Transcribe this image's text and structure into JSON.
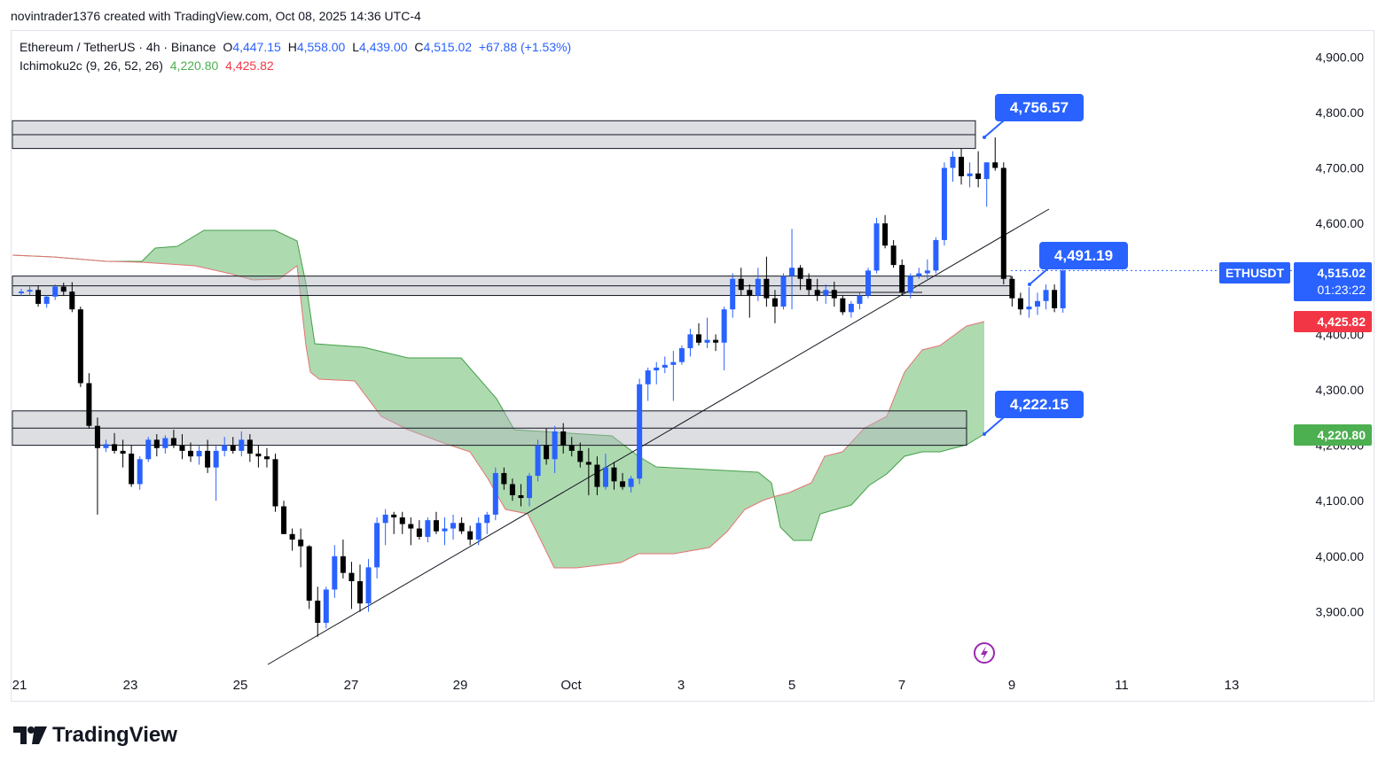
{
  "header": {
    "text": "novintrader1376 created with TradingView.com, Oct 08, 2025 14:36 UTC-4"
  },
  "legend": {
    "symbol": "Ethereum / TetherUS · 4h · Binance",
    "o_label": "O",
    "o": "4,447.15",
    "h_label": "H",
    "h": "4,558.00",
    "l_label": "L",
    "l": "4,439.00",
    "c_label": "C",
    "c": "4,515.02",
    "change": "+67.88 (+1.53%)",
    "indicator": "Ichimoku2c (9, 26, 52, 26)",
    "ind_val1": "4,220.80",
    "ind_val2": "4,425.82"
  },
  "logo": {
    "text": "TradingView"
  },
  "colors": {
    "up": "#2962ff",
    "down": "#000000",
    "cloud": "#a5d6a7",
    "cloud_edge": "#e57373",
    "accent": "#2962ff",
    "red": "#f23645",
    "green": "#4caf50"
  },
  "chart_data": {
    "type": "candlestick",
    "title": "Ethereum / TetherUS · 4h · Binance",
    "y_ticks": [
      "4,900.00",
      "4,800.00",
      "4,700.00",
      "4,600.00",
      "4,500.00",
      "4,400.00",
      "4,300.00",
      "4,200.00",
      "4,100.00",
      "4,000.00",
      "3,900.00"
    ],
    "x_ticks": [
      "21",
      "23",
      "25",
      "27",
      "29",
      "Oct",
      "3",
      "5",
      "7",
      "9",
      "11",
      "13"
    ],
    "ylim": [
      3830,
      4960
    ],
    "price_labels": {
      "symbol": "ETHUSDT",
      "last": "4,515.02",
      "countdown": "01:23:22",
      "kijun": "4,425.82",
      "senkou": "4,220.80"
    },
    "callouts": [
      "4,756.57",
      "4,491.19",
      "4,222.15"
    ],
    "zones": [
      {
        "low": 4735,
        "high": 4785
      },
      {
        "low": 4470,
        "high": 4505
      },
      {
        "low": 4200,
        "high": 4262
      }
    ],
    "candles": [
      [
        4474,
        4482,
        4469,
        4477
      ],
      [
        4477,
        4486,
        4470,
        4480
      ],
      [
        4480,
        4488,
        4450,
        4455
      ],
      [
        4455,
        4470,
        4448,
        4468
      ],
      [
        4468,
        4490,
        4462,
        4486
      ],
      [
        4486,
        4493,
        4470,
        4477
      ],
      [
        4477,
        4494,
        4440,
        4445
      ],
      [
        4445,
        4450,
        4305,
        4312
      ],
      [
        4312,
        4330,
        4230,
        4235
      ],
      [
        4235,
        4250,
        4075,
        4195
      ],
      [
        4195,
        4210,
        4188,
        4202
      ],
      [
        4202,
        4222,
        4185,
        4190
      ],
      [
        4190,
        4210,
        4160,
        4185
      ],
      [
        4185,
        4200,
        4125,
        4130
      ],
      [
        4130,
        4180,
        4120,
        4175
      ],
      [
        4175,
        4215,
        4170,
        4210
      ],
      [
        4210,
        4220,
        4180,
        4195
      ],
      [
        4195,
        4218,
        4185,
        4213
      ],
      [
        4213,
        4228,
        4195,
        4200
      ],
      [
        4200,
        4220,
        4175,
        4190
      ],
      [
        4190,
        4205,
        4170,
        4180
      ],
      [
        4180,
        4200,
        4165,
        4190
      ],
      [
        4190,
        4210,
        4150,
        4160
      ],
      [
        4160,
        4200,
        4100,
        4190
      ],
      [
        4190,
        4215,
        4180,
        4200
      ],
      [
        4200,
        4215,
        4185,
        4190
      ],
      [
        4190,
        4225,
        4180,
        4210
      ],
      [
        4210,
        4220,
        4170,
        4185
      ],
      [
        4185,
        4200,
        4160,
        4180
      ],
      [
        4180,
        4195,
        4160,
        4175
      ],
      [
        4175,
        4185,
        4080,
        4090
      ],
      [
        4090,
        4100,
        4040,
        4040
      ],
      [
        4040,
        4050,
        4010,
        4030
      ],
      [
        4030,
        4050,
        3980,
        4018
      ],
      [
        4018,
        4020,
        3905,
        3920
      ],
      [
        3920,
        3945,
        3855,
        3880
      ],
      [
        3880,
        3945,
        3870,
        3940
      ],
      [
        3940,
        4020,
        3925,
        4000
      ],
      [
        4000,
        4030,
        3960,
        3970
      ],
      [
        3970,
        3990,
        3905,
        3955
      ],
      [
        3955,
        3985,
        3900,
        3915
      ],
      [
        3915,
        3995,
        3900,
        3980
      ],
      [
        3980,
        4070,
        3960,
        4060
      ],
      [
        4060,
        4085,
        4020,
        4075
      ],
      [
        4075,
        4080,
        4040,
        4070
      ],
      [
        4070,
        4080,
        4040,
        4058
      ],
      [
        4058,
        4070,
        4020,
        4050
      ],
      [
        4050,
        4065,
        4030,
        4035
      ],
      [
        4035,
        4070,
        4025,
        4065
      ],
      [
        4065,
        4080,
        4040,
        4045
      ],
      [
        4045,
        4070,
        4020,
        4050
      ],
      [
        4050,
        4075,
        4030,
        4060
      ],
      [
        4060,
        4070,
        4040,
        4045
      ],
      [
        4045,
        4055,
        4020,
        4030
      ],
      [
        4030,
        4070,
        4020,
        4060
      ],
      [
        4060,
        4080,
        4040,
        4075
      ],
      [
        4075,
        4160,
        4065,
        4150
      ],
      [
        4150,
        4160,
        4120,
        4130
      ],
      [
        4130,
        4140,
        4100,
        4110
      ],
      [
        4110,
        4130,
        4090,
        4105
      ],
      [
        4105,
        4150,
        4090,
        4145
      ],
      [
        4145,
        4210,
        4135,
        4200
      ],
      [
        4200,
        4230,
        4165,
        4175
      ],
      [
        4175,
        4235,
        4150,
        4225
      ],
      [
        4225,
        4240,
        4185,
        4200
      ],
      [
        4200,
        4215,
        4180,
        4190
      ],
      [
        4190,
        4205,
        4160,
        4170
      ],
      [
        4170,
        4195,
        4110,
        4165
      ],
      [
        4165,
        4180,
        4110,
        4125
      ],
      [
        4125,
        4185,
        4120,
        4160
      ],
      [
        4160,
        4170,
        4120,
        4135
      ],
      [
        4135,
        4150,
        4120,
        4125
      ],
      [
        4125,
        4145,
        4115,
        4140
      ],
      [
        4140,
        4320,
        4130,
        4310
      ],
      [
        4310,
        4340,
        4280,
        4335
      ],
      [
        4335,
        4350,
        4310,
        4340
      ],
      [
        4340,
        4360,
        4330,
        4345
      ],
      [
        4345,
        4370,
        4280,
        4350
      ],
      [
        4350,
        4380,
        4345,
        4375
      ],
      [
        4375,
        4410,
        4360,
        4400
      ],
      [
        4400,
        4420,
        4380,
        4385
      ],
      [
        4385,
        4430,
        4375,
        4390
      ],
      [
        4390,
        4400,
        4370,
        4385
      ],
      [
        4385,
        4450,
        4335,
        4445
      ],
      [
        4445,
        4510,
        4430,
        4500
      ],
      [
        4500,
        4520,
        4470,
        4480
      ],
      [
        4480,
        4490,
        4430,
        4470
      ],
      [
        4470,
        4520,
        4460,
        4500
      ],
      [
        4500,
        4540,
        4450,
        4465
      ],
      [
        4465,
        4480,
        4420,
        4450
      ],
      [
        4450,
        4510,
        4445,
        4505
      ],
      [
        4505,
        4590,
        4445,
        4520
      ],
      [
        4520,
        4525,
        4480,
        4500
      ],
      [
        4500,
        4510,
        4470,
        4480
      ],
      [
        4480,
        4500,
        4460,
        4470
      ],
      [
        4470,
        4490,
        4455,
        4480
      ],
      [
        4480,
        4495,
        4450,
        4465
      ],
      [
        4465,
        4470,
        4435,
        4440
      ],
      [
        4440,
        4460,
        4430,
        4455
      ],
      [
        4455,
        4475,
        4445,
        4470
      ],
      [
        4470,
        4520,
        4465,
        4515
      ],
      [
        4515,
        4610,
        4510,
        4600
      ],
      [
        4600,
        4615,
        4555,
        4560
      ],
      [
        4560,
        4570,
        4520,
        4525
      ],
      [
        4525,
        4535,
        4470,
        4475
      ],
      [
        4475,
        4510,
        4465,
        4505
      ],
      [
        4505,
        4520,
        4500,
        4510
      ],
      [
        4510,
        4535,
        4500,
        4515
      ],
      [
        4515,
        4575,
        4510,
        4570
      ],
      [
        4570,
        4710,
        4560,
        4700
      ],
      [
        4700,
        4730,
        4675,
        4720
      ],
      [
        4720,
        4735,
        4670,
        4685
      ],
      [
        4685,
        4710,
        4665,
        4690
      ],
      [
        4690,
        4730,
        4665,
        4680
      ],
      [
        4680,
        4710,
        4630,
        4710
      ],
      [
        4710,
        4755,
        4695,
        4700
      ],
      [
        4700,
        4710,
        4490,
        4500
      ],
      [
        4500,
        4505,
        4450,
        4465
      ],
      [
        4465,
        4475,
        4435,
        4445
      ],
      [
        4445,
        4485,
        4430,
        4450
      ],
      [
        4450,
        4475,
        4435,
        4460
      ],
      [
        4460,
        4490,
        4445,
        4480
      ],
      [
        4480,
        4490,
        4440,
        4447
      ],
      [
        4447,
        4558,
        4439,
        4515
      ]
    ],
    "ichimoku_kijun": "4,425.82",
    "ichimoku_senkou": "4,220.80"
  }
}
